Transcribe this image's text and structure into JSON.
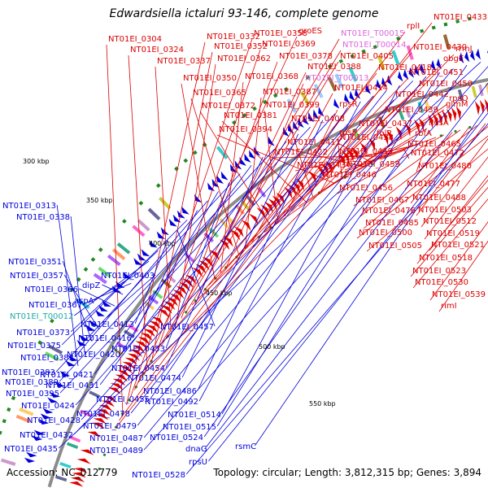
{
  "title": "Edwardsiella ictaluri 93-146, complete genome",
  "footer": {
    "accession": "Accession: NC_012779",
    "summary": "Topology: circular; Length: 3,812,315 bp; Genes: 3,894"
  },
  "colors": {
    "forward": "#dd0000",
    "reverse": "#0000dd",
    "pink_label": "#dd66dd",
    "cyan_label": "#22aaaa",
    "backbone": "#8c8c8c",
    "tick": "#228822"
  },
  "ticks": [
    {
      "label": "300 kbp"
    },
    {
      "label": "350 kbp"
    },
    {
      "label": "400 kbp"
    },
    {
      "label": "450 kbp"
    },
    {
      "label": "500 kbp"
    },
    {
      "label": "550 kbp"
    }
  ],
  "red_labels": [
    "NT01EI_0433",
    "rplI",
    "NT01EI_0304",
    "NT01EI_0332",
    "NT01EI_0358",
    "groES",
    "NT01EI_T00015",
    "rrmJ",
    "NT01EI_0324",
    "NT01EI_0352",
    "NT01EI_0369",
    "NT01EI_T00014",
    "NT01EI_0430",
    "NT01EI_0337",
    "NT01EI_0362",
    "NT01EI_0378",
    "NT01EI_0405",
    "obgE",
    "NT01EI_0388",
    "NT01EI_0418",
    "NT01EI_0451",
    "NT01EI_0350",
    "NT01EI_0368",
    "NT01EI_T00013",
    "NT01EI_0450",
    "NT01EI_0365",
    "NT01EI_0387",
    "NT01EI_0414",
    "NT01EI_0442",
    "rpsO",
    "NT01EI_0372",
    "NT01EI_0399",
    "rpsR",
    "NT01EI_0439",
    "glmM",
    "NT01EI_0381",
    "NT01EI_0408",
    "NT01EI_0437",
    "nusA",
    "NT01EI_0394",
    "rpsF",
    "folP",
    "rbfA",
    "NT01EI_0411",
    "NT01EI_0438",
    "NT01EI_0465",
    "NT01EI_0422",
    "NT01EI_0449",
    "NT01EI_0472",
    "NT01EI_0434",
    "NT01EI_0459",
    "NT01EI_0480",
    "NT01EI_0446",
    "NT01EI_0456",
    "NT01EI_0477",
    "NT01EI_0467",
    "NT01EI_0488",
    "NT01EI_0476",
    "NT01EI_0503",
    "NT01EI_0485",
    "NT01EI_0512",
    "NT01EI_0500",
    "NT01EI_0519",
    "NT01EI_0505",
    "NT01EI_0521",
    "NT01EI_0518",
    "NT01EI_0523",
    "NT01EI_0530",
    "NT01EI_0539",
    "rimI"
  ],
  "blue_labels": [
    "NT01EI_0313",
    "NT01EI_0338",
    "NT01EI_0351",
    "NT01EI_0357",
    "NT01EI_0403",
    "NT01EI_0366",
    "dipZ",
    "NT01EI_0367",
    "aspA",
    "NT01EI_T00012",
    "NT01EI_0373",
    "NT01EI_0413",
    "NT01EI_0457",
    "NT01EI_0375",
    "NT01EI_0416",
    "NT01EI_0382",
    "NT01EI_0420",
    "NT01EI_0453",
    "NT01EI_0383",
    "NT01EI_0421",
    "NT01EI_0454",
    "NT01EI_0389",
    "NT01EI_0431",
    "NT01EI_0474",
    "NT01EI_0395",
    "NT01EI_0486",
    "NT01EI_0424",
    "NT01EI_0455",
    "NT01EI_0492",
    "NT01EI_0428",
    "NT01EI_0478",
    "NT01EI_0514",
    "NT01EI_0432",
    "NT01EI_0479",
    "NT01EI_0515",
    "NT01EI_0487",
    "NT01EI_0524",
    "NT01EI_0435",
    "NT01EI_0489",
    "dnaG",
    "rsmC",
    "rpsU",
    "NT01EI_0528"
  ]
}
